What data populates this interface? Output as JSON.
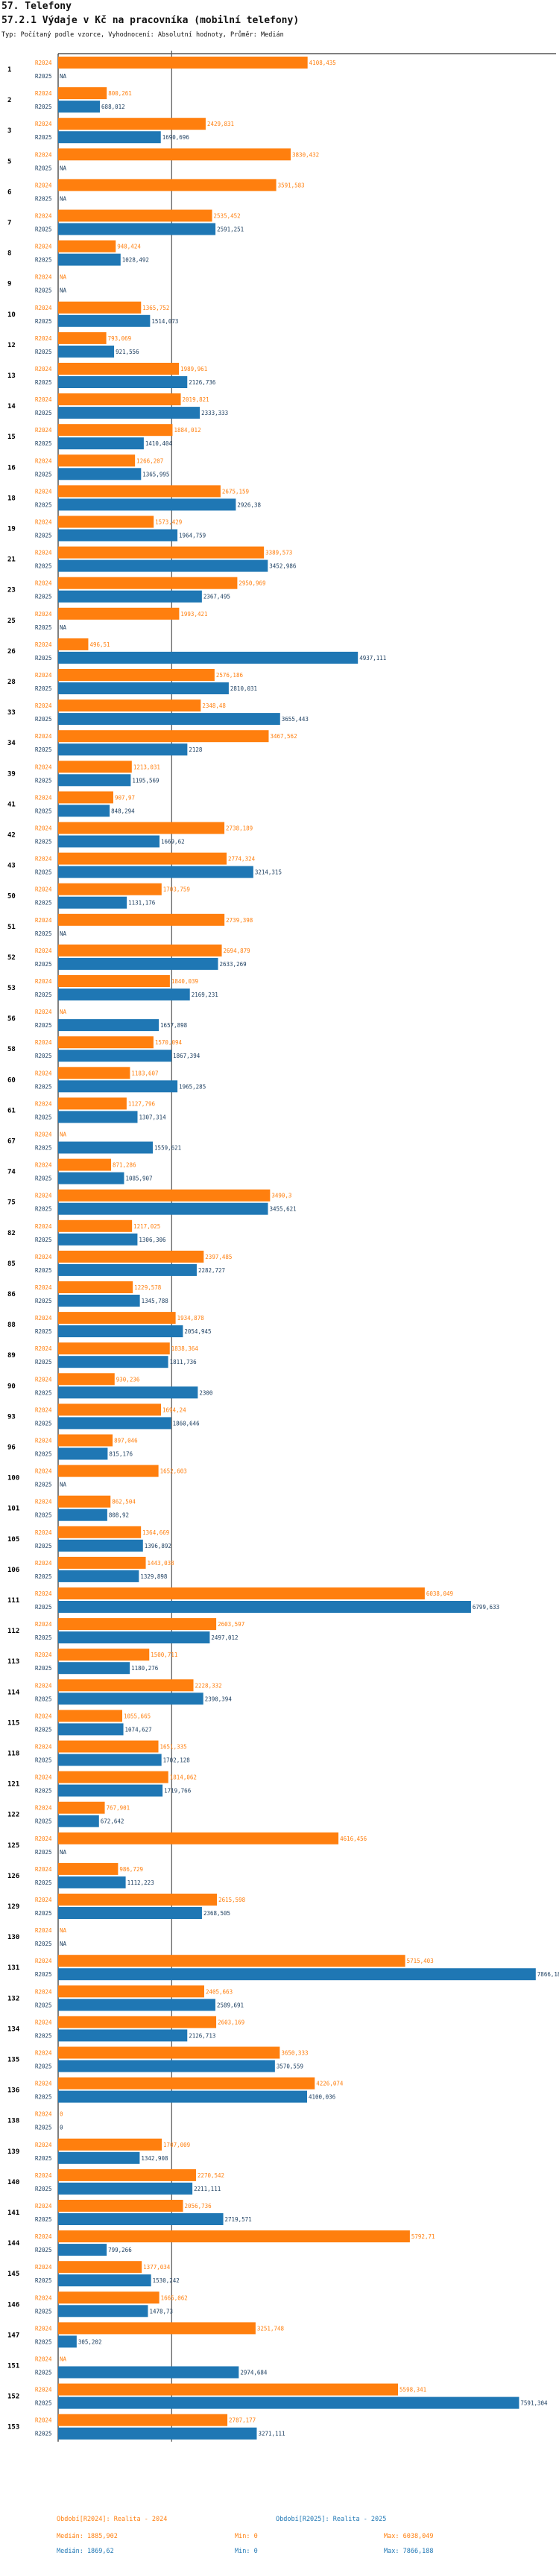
{
  "header": {
    "title": "57. Telefony",
    "subtitle": "57.2.1 Výdaje v Kč na pracovníka (mobilní telefony)",
    "info": "Typ: Počítaný podle vzorce, Vyhodnocení: Absolutní hodnoty, Průměr: Medián"
  },
  "colors": {
    "r2024": "#ff7f0e",
    "r2025": "#1f77b4",
    "median_line": "#555555"
  },
  "legend": {
    "r2024": {
      "label": "Období[R2024]: Realita - 2024",
      "median": "Medián: 1885,902",
      "min": "Min: 0",
      "max": "Max: 6038,049"
    },
    "r2025": {
      "label": "Období[R2025]: Realita - 2025",
      "median": "Medián: 1869,62",
      "min": "Min: 0",
      "max": "Max: 7866,188"
    }
  },
  "chart_data": {
    "type": "bar",
    "orientation": "horizontal",
    "title": "57.2.1 Výdaje v Kč na pracovníka (mobilní telefony)",
    "series_labels": [
      "R2024",
      "R2025"
    ],
    "x_range": [
      0,
      8200
    ],
    "median_2024": 1885.902,
    "median_2025": 1869.62,
    "groups": [
      {
        "id": "1",
        "r2024": "4108,435",
        "r2025": "NA"
      },
      {
        "id": "2",
        "r2024": "800,261",
        "r2025": "688,012"
      },
      {
        "id": "3",
        "r2024": "2429,831",
        "r2025": "1690,696"
      },
      {
        "id": "5",
        "r2024": "3830,432",
        "r2025": "NA"
      },
      {
        "id": "6",
        "r2024": "3591,583",
        "r2025": "NA"
      },
      {
        "id": "7",
        "r2024": "2535,452",
        "r2025": "2591,251"
      },
      {
        "id": "8",
        "r2024": "948,424",
        "r2025": "1028,492"
      },
      {
        "id": "9",
        "r2024": "NA",
        "r2025": "NA"
      },
      {
        "id": "10",
        "r2024": "1365,752",
        "r2025": "1514,073"
      },
      {
        "id": "12",
        "r2024": "793,069",
        "r2025": "921,556"
      },
      {
        "id": "13",
        "r2024": "1989,961",
        "r2025": "2126,736"
      },
      {
        "id": "14",
        "r2024": "2019,821",
        "r2025": "2333,333"
      },
      {
        "id": "15",
        "r2024": "1884,012",
        "r2025": "1410,404"
      },
      {
        "id": "16",
        "r2024": "1266,207",
        "r2025": "1365,995"
      },
      {
        "id": "18",
        "r2024": "2675,159",
        "r2025": "2926,38"
      },
      {
        "id": "19",
        "r2024": "1573,429",
        "r2025": "1964,759"
      },
      {
        "id": "21",
        "r2024": "3389,573",
        "r2025": "3452,986"
      },
      {
        "id": "23",
        "r2024": "2950,969",
        "r2025": "2367,495"
      },
      {
        "id": "25",
        "r2024": "1993,421",
        "r2025": "NA"
      },
      {
        "id": "26",
        "r2024": "496,51",
        "r2025": "4937,111"
      },
      {
        "id": "28",
        "r2024": "2576,186",
        "r2025": "2810,031"
      },
      {
        "id": "33",
        "r2024": "2348,48",
        "r2025": "3655,443"
      },
      {
        "id": "34",
        "r2024": "3467,562",
        "r2025": "2128"
      },
      {
        "id": "39",
        "r2024": "1213,031",
        "r2025": "1195,569"
      },
      {
        "id": "41",
        "r2024": "907,97",
        "r2025": "848,294"
      },
      {
        "id": "42",
        "r2024": "2738,189",
        "r2025": "1669,62"
      },
      {
        "id": "43",
        "r2024": "2774,324",
        "r2025": "3214,315"
      },
      {
        "id": "50",
        "r2024": "1703,759",
        "r2025": "1131,176"
      },
      {
        "id": "51",
        "r2024": "2739,398",
        "r2025": "NA"
      },
      {
        "id": "52",
        "r2024": "2694,879",
        "r2025": "2633,269"
      },
      {
        "id": "53",
        "r2024": "1840,039",
        "r2025": "2169,231"
      },
      {
        "id": "56",
        "r2024": "NA",
        "r2025": "1657,898"
      },
      {
        "id": "58",
        "r2024": "1570,094",
        "r2025": "1867,394"
      },
      {
        "id": "60",
        "r2024": "1183,607",
        "r2025": "1965,285"
      },
      {
        "id": "61",
        "r2024": "1127,796",
        "r2025": "1307,314"
      },
      {
        "id": "67",
        "r2024": "NA",
        "r2025": "1559,621"
      },
      {
        "id": "74",
        "r2024": "871,286",
        "r2025": "1085,907"
      },
      {
        "id": "75",
        "r2024": "3490,3",
        "r2025": "3455,621"
      },
      {
        "id": "82",
        "r2024": "1217,025",
        "r2025": "1306,306"
      },
      {
        "id": "85",
        "r2024": "2397,485",
        "r2025": "2282,727"
      },
      {
        "id": "86",
        "r2024": "1229,578",
        "r2025": "1345,788"
      },
      {
        "id": "88",
        "r2024": "1934,878",
        "r2025": "2054,945"
      },
      {
        "id": "89",
        "r2024": "1838,364",
        "r2025": "1811,736"
      },
      {
        "id": "90",
        "r2024": "930,236",
        "r2025": "2300"
      },
      {
        "id": "93",
        "r2024": "1694,24",
        "r2025": "1860,646"
      },
      {
        "id": "96",
        "r2024": "897,046",
        "r2025": "815,176"
      },
      {
        "id": "100",
        "r2024": "1652,603",
        "r2025": "NA"
      },
      {
        "id": "101",
        "r2024": "862,504",
        "r2025": "808,92"
      },
      {
        "id": "105",
        "r2024": "1364,669",
        "r2025": "1396,892"
      },
      {
        "id": "106",
        "r2024": "1443,038",
        "r2025": "1329,898"
      },
      {
        "id": "111",
        "r2024": "6038,049",
        "r2025": "6799,633"
      },
      {
        "id": "112",
        "r2024": "2603,597",
        "r2025": "2497,012"
      },
      {
        "id": "113",
        "r2024": "1500,711",
        "r2025": "1180,276"
      },
      {
        "id": "114",
        "r2024": "2228,332",
        "r2025": "2390,394"
      },
      {
        "id": "115",
        "r2024": "1055,665",
        "r2025": "1074,627"
      },
      {
        "id": "118",
        "r2024": "1651,335",
        "r2025": "1702,128"
      },
      {
        "id": "121",
        "r2024": "1814,062",
        "r2025": "1719,766"
      },
      {
        "id": "122",
        "r2024": "767,901",
        "r2025": "672,642"
      },
      {
        "id": "125",
        "r2024": "4616,456",
        "r2025": "NA"
      },
      {
        "id": "126",
        "r2024": "986,729",
        "r2025": "1112,223"
      },
      {
        "id": "129",
        "r2024": "2615,598",
        "r2025": "2368,505"
      },
      {
        "id": "130",
        "r2024": "NA",
        "r2025": "NA"
      },
      {
        "id": "131",
        "r2024": "5715,403",
        "r2025": "7866,188"
      },
      {
        "id": "132",
        "r2024": "2405,663",
        "r2025": "2589,691"
      },
      {
        "id": "134",
        "r2024": "2603,169",
        "r2025": "2126,713"
      },
      {
        "id": "135",
        "r2024": "3650,333",
        "r2025": "3570,559"
      },
      {
        "id": "136",
        "r2024": "4226,074",
        "r2025": "4100,036"
      },
      {
        "id": "138",
        "r2024": "0",
        "r2025": "0"
      },
      {
        "id": "139",
        "r2024": "1707,009",
        "r2025": "1342,908"
      },
      {
        "id": "140",
        "r2024": "2270,542",
        "r2025": "2211,111"
      },
      {
        "id": "141",
        "r2024": "2056,736",
        "r2025": "2719,571"
      },
      {
        "id": "144",
        "r2024": "5792,71",
        "r2025": "799,266"
      },
      {
        "id": "145",
        "r2024": "1377,034",
        "r2025": "1530,242"
      },
      {
        "id": "146",
        "r2024": "1665,062",
        "r2025": "1478,73"
      },
      {
        "id": "147",
        "r2024": "3251,748",
        "r2025": "305,202"
      },
      {
        "id": "151",
        "r2024": "NA",
        "r2025": "2974,684"
      },
      {
        "id": "152",
        "r2024": "5598,341",
        "r2025": "7591,304"
      },
      {
        "id": "153",
        "r2024": "2787,177",
        "r2025": "3271,111"
      }
    ]
  }
}
